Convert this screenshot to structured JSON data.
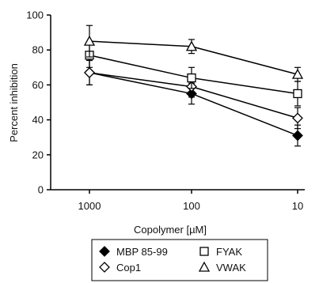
{
  "chart_data": {
    "type": "line",
    "xlabel": "Copolymer [µM]",
    "ylabel": "Percent inhibition",
    "categories": [
      "1000",
      "100",
      "10"
    ],
    "ylim": [
      0,
      100
    ],
    "yticks": [
      "0",
      "20",
      "40",
      "60",
      "80",
      "100"
    ],
    "grid": false,
    "legend_position": "bottom",
    "series": [
      {
        "name": "MBP 85-99",
        "marker": "filled-diamond",
        "values": [
          67,
          55,
          31
        ],
        "error": [
          7,
          6,
          6
        ]
      },
      {
        "name": "Cop1",
        "marker": "open-diamond",
        "values": [
          67,
          59,
          41
        ],
        "error": [
          7,
          6,
          6
        ]
      },
      {
        "name": "FYAK",
        "marker": "open-square",
        "values": [
          77,
          64,
          55
        ],
        "error": [
          7,
          6,
          7
        ]
      },
      {
        "name": "VWAK",
        "marker": "open-triangle",
        "values": [
          85,
          82,
          66
        ],
        "error": [
          9,
          4,
          4
        ]
      }
    ]
  }
}
